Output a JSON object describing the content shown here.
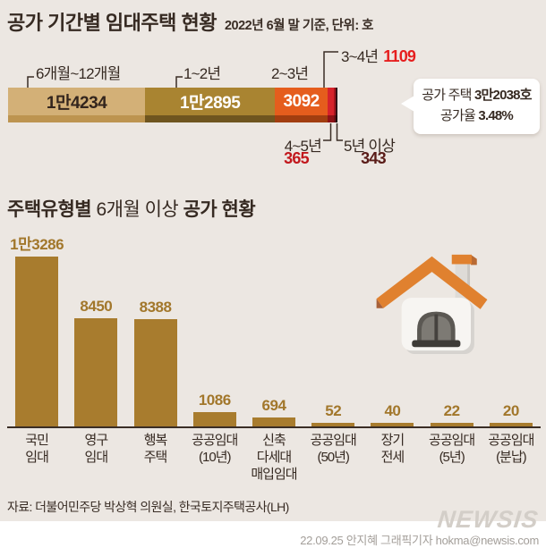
{
  "header": {
    "title": "공가 기간별 임대주택 현황",
    "subtitle": "2022년 6월 말 기준, 단위: 호"
  },
  "callout": {
    "line1_prefix": "공가 주택 ",
    "line1_strong": "3만2038호",
    "line2_prefix": "공가율 ",
    "line2_strong": "3.48%"
  },
  "section2_title": {
    "bold1": "주택유형별",
    "normal": " 6개월 이상 ",
    "bold2": "공가 현황"
  },
  "footer": {
    "source": "자료: 더불어민주당 박상혁 의원실, 한국토지주택공사(LH)",
    "watermark": "NEWSIS",
    "credit": "22.09.25 안지혜 그래픽기자 hokma@newsis.com"
  },
  "colors": {
    "background": "#ece7e2",
    "ink": "#362a22",
    "axis": "#3a2d25",
    "callout_bg": "#ffffff"
  },
  "chart_data": [
    {
      "type": "bar",
      "subtype": "horizontal-stacked",
      "title": "공가 기간별 임대주택 현황",
      "unit_note": "2022년 6월 말 기준, 단위: 호",
      "total": 32038,
      "total_note": "공가 주택 3만2038호, 공가율 3.48%",
      "segments": [
        {
          "label": "6개월~12개월",
          "value": 14234,
          "display": "1만4234",
          "color": "#d3b077",
          "edge": "#bd9450",
          "text_color": "#33251d"
        },
        {
          "label": "1~2년",
          "value": 12895,
          "display": "1만2895",
          "color": "#a98431",
          "edge": "#6f551f",
          "text_color": "#ffffff"
        },
        {
          "label": "2~3년",
          "value": 3092,
          "display": "3092",
          "color": "#e55d1d",
          "edge": "#a23e10",
          "text_color": "#ffffff"
        },
        {
          "label": "3~4년",
          "value": 1109,
          "display": "1109",
          "color": "#d6232b",
          "edge": "#8e1216",
          "value_color": "#e61e1e"
        },
        {
          "label": "4~5년",
          "value": 365,
          "display": "365",
          "color": "#a3151d",
          "edge": "#6d0f14",
          "value_color": "#c2181d"
        },
        {
          "label": "5년 이상",
          "value": 343,
          "display": "343",
          "color": "#311015",
          "edge": "#1f0a0c",
          "value_color": "#5a1c18"
        }
      ]
    },
    {
      "type": "bar",
      "title": "주택유형별 6개월 이상 공가 현황",
      "categories": [
        "국민\n임대",
        "영구\n임대",
        "행복\n주택",
        "공공임대\n(10년)",
        "신축\n다세대\n매입임대",
        "공공임대\n(50년)",
        "장기\n전세",
        "공공임대\n(5년)",
        "공공임대\n(분납)"
      ],
      "values": [
        13286,
        8450,
        8388,
        1086,
        694,
        52,
        40,
        22,
        20
      ],
      "value_labels": [
        "1만3286",
        "8450",
        "8388",
        "1086",
        "694",
        "52",
        "40",
        "22",
        "20"
      ],
      "bar_color": "#a87c2e",
      "value_color": "#a2772b",
      "ylim": [
        0,
        13286
      ],
      "grid": false,
      "legend": false
    }
  ]
}
